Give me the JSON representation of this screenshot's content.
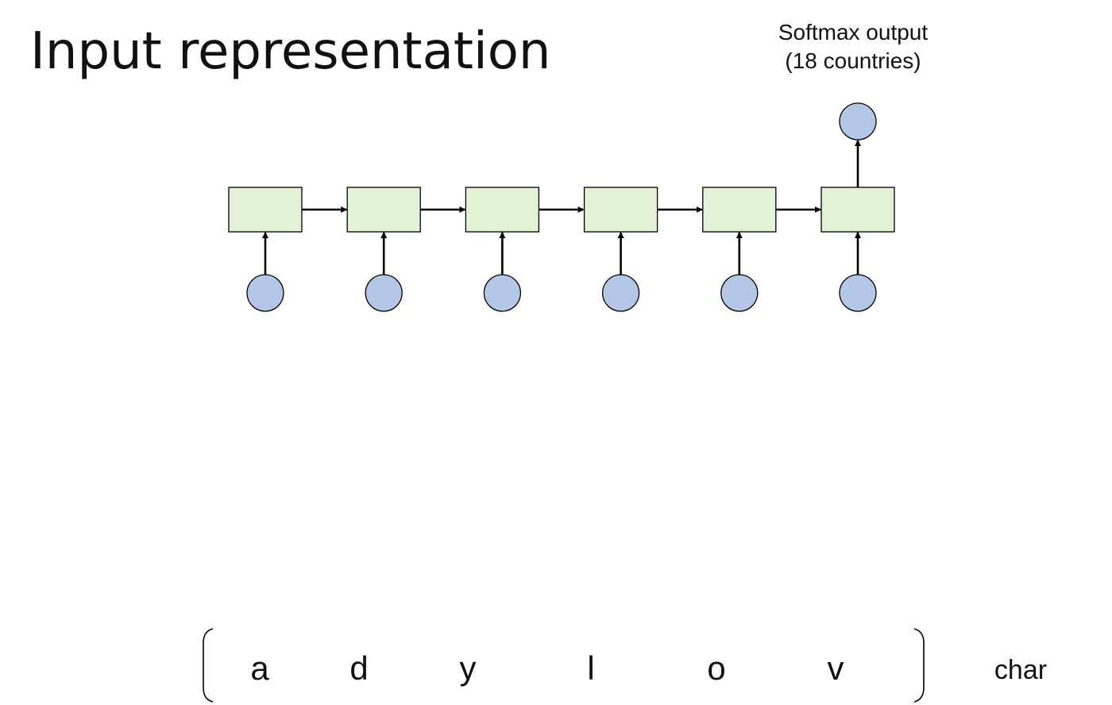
{
  "title": "Input representation",
  "output": {
    "label_line1": "Softmax output",
    "label_line2": "(18 countries)"
  },
  "sequence": {
    "chars": [
      "a",
      "d",
      "y",
      "l",
      "o",
      "v"
    ],
    "row_label": "char"
  },
  "colors": {
    "cell_fill": "#e3f1d6",
    "node_fill": "#b4c7e7",
    "stroke": "#000000"
  }
}
